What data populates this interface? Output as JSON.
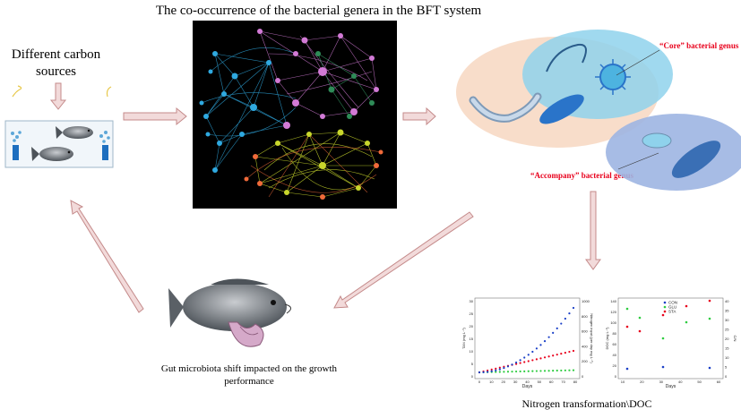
{
  "title": "The co-occurrence of the bacterial genera in the BFT system",
  "carbon_sources": "Different carbon sources",
  "core_label": "“Core” bacterial genus",
  "accompany_label": "“Accompany” bacterial genus",
  "gut_label": "Gut microbiota shift impacted on the growth performance",
  "nitrogen_label": "Nitrogen transformation\\DOC",
  "colors": {
    "arrow_fill": "#f2dada",
    "arrow_stroke": "#c48a8a",
    "network_bg": "#000000",
    "cluster_blue": "#2fa9e0",
    "cluster_pink": "#d27ad6",
    "cluster_green": "#2e8b57",
    "cluster_yellow": "#c8d62c",
    "cluster_orange": "#f06a3a",
    "core_ellipse": "#8fd2ec",
    "peach_ellipse": "#f7d9c4",
    "accompany_ellipse": "#9db5e2",
    "label_red": "#e8001c"
  },
  "icons": [
    "fish-tank-icon",
    "network-graph-icon",
    "bacteria-cluster-icon",
    "fish-gut-icon",
    "nitrogen-chart-icon"
  ],
  "chart_data": [
    {
      "type": "scatter",
      "xlabel": "Days",
      "ylabel": "TAN (mg L⁻¹)",
      "ylabel_right": "Nitrogen input (per day mg L⁻¹)",
      "xticks": [
        "0",
        "10",
        "20",
        "30",
        "40",
        "50",
        "60",
        "70",
        "80"
      ],
      "yticks": [
        "0",
        "5",
        "10",
        "15",
        "20",
        "25",
        "30"
      ],
      "yticks_right": [
        "0",
        "200",
        "400",
        "600",
        "800",
        "1000"
      ],
      "ylim": [
        0,
        30
      ],
      "xlim": [
        0,
        80
      ]
    },
    {
      "type": "scatter",
      "xlabel": "Days",
      "ylabel": "DOC (mg L⁻¹)",
      "ylabel_right": "C/N",
      "xticks": [
        "10",
        "20",
        "30",
        "40",
        "50",
        "60"
      ],
      "yticks": [
        "0",
        "20",
        "40",
        "60",
        "80",
        "100",
        "120",
        "140"
      ],
      "yticks_right": [
        "0",
        "5",
        "10",
        "15",
        "20",
        "25",
        "30",
        "35",
        "40"
      ],
      "legend": [
        "CON",
        "GLU",
        "STA"
      ],
      "ylim": [
        0,
        140
      ]
    }
  ]
}
